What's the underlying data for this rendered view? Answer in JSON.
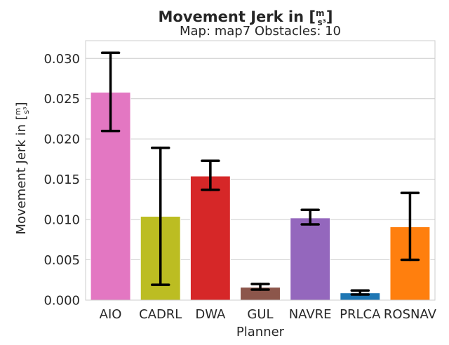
{
  "chart_data": {
    "type": "bar",
    "title_prefix": "Movement Jerk in [",
    "title_unit_num": "m",
    "title_unit_den": "s³",
    "title_suffix": "]",
    "subtitle": "Map: map7 Obstacles: 10",
    "xlabel": "Planner",
    "ylabel_prefix": "Movement Jerk in [",
    "ylabel_unit_num": "m",
    "ylabel_unit_den": "s³",
    "ylabel_suffix": "]",
    "ylim": [
      0,
      0.0322
    ],
    "yticks": [
      "0.000",
      "0.005",
      "0.010",
      "0.015",
      "0.020",
      "0.025",
      "0.030"
    ],
    "ytick_values": [
      0,
      0.005,
      0.01,
      0.015,
      0.02,
      0.025,
      0.03
    ],
    "grid": true,
    "categories": [
      "AIO",
      "CADRL",
      "DWA",
      "GUL",
      "NAVRE",
      "PRLCA",
      "ROSNAV"
    ],
    "values": [
      0.0258,
      0.0104,
      0.0154,
      0.0016,
      0.0102,
      0.0009,
      0.0091
    ],
    "err_low": [
      0.021,
      0.0019,
      0.0137,
      0.0013,
      0.0094,
      0.0007,
      0.005
    ],
    "err_high": [
      0.0307,
      0.0189,
      0.0173,
      0.002,
      0.0112,
      0.0012,
      0.0133
    ],
    "colors": [
      "#e377c2",
      "#bcbd22",
      "#d62728",
      "#8c564b",
      "#9467bd",
      "#1f77b4",
      "#ff7f0e"
    ]
  }
}
